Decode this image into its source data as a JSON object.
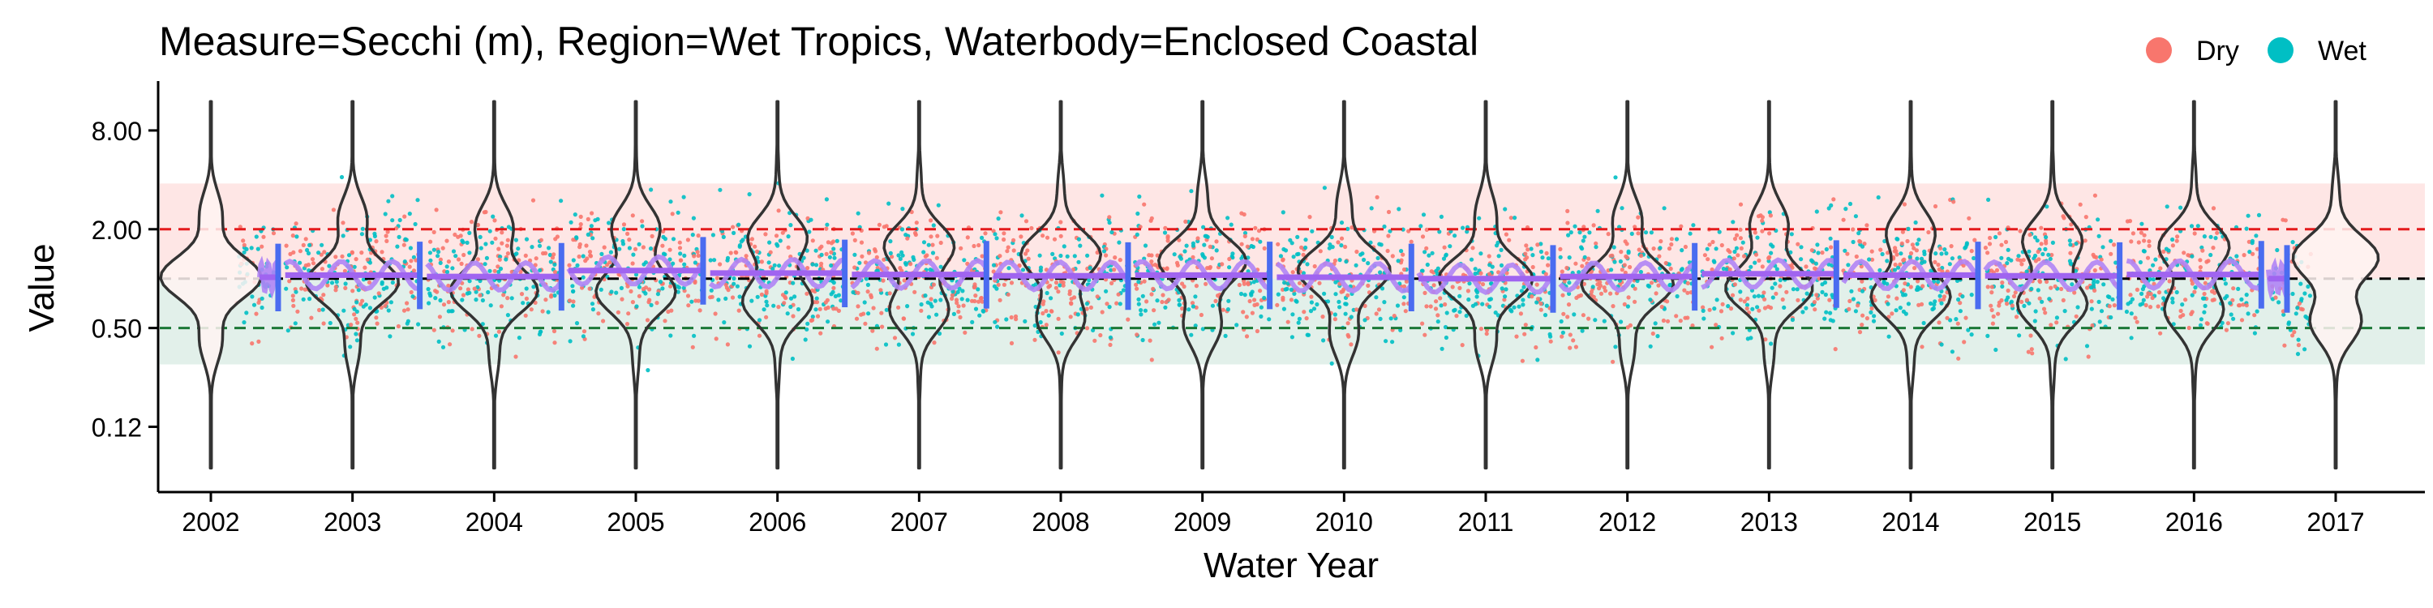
{
  "chart_data": {
    "type": "scatter",
    "title": "Measure=Secchi (m), Region=Wet Tropics, Waterbody=Enclosed Coastal",
    "xlabel": "Water Year",
    "ylabel": "Value",
    "y_scale": "log2",
    "ylim": [
      0.05,
      16
    ],
    "y_ticks": [
      {
        "value": 8.0,
        "label": "8.00"
      },
      {
        "value": 2.0,
        "label": "2.00"
      },
      {
        "value": 0.5,
        "label": "0.50"
      },
      {
        "value": 0.125,
        "label": "0.12"
      }
    ],
    "years": [
      "2002",
      "2003",
      "2004",
      "2005",
      "2006",
      "2007",
      "2008",
      "2009",
      "2010",
      "2011",
      "2012",
      "2013",
      "2014",
      "2015",
      "2016",
      "2017"
    ],
    "legend": {
      "position": "top-right",
      "entries": [
        {
          "name": "Dry",
          "color": "#F8766D"
        },
        {
          "name": "Wet",
          "color": "#00BFC4"
        }
      ]
    },
    "reference_lines": [
      {
        "value": 2.0,
        "color": "#E41A1C",
        "style": "dashed"
      },
      {
        "value": 1.0,
        "color": "#000000",
        "style": "dashed"
      },
      {
        "value": 0.5,
        "color": "#1B7837",
        "style": "dashed"
      }
    ],
    "bands": [
      {
        "from": 1.0,
        "to": 3.8,
        "color": "#F8766D"
      },
      {
        "from": 0.3,
        "to": 1.0,
        "color": "#5EAA8C"
      }
    ],
    "trend": {
      "color": "#4A6CF0",
      "yearly_means": [
        1.02,
        1.05,
        1.03,
        1.12,
        1.08,
        1.06,
        1.04,
        1.05,
        1.02,
        1.0,
        1.03,
        1.07,
        1.05,
        1.04,
        1.06,
        1.0
      ]
    }
  }
}
